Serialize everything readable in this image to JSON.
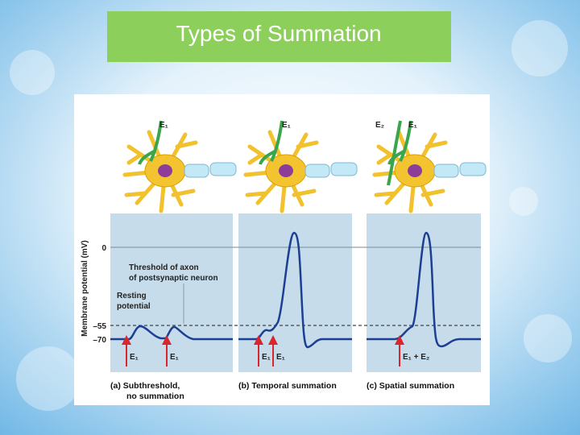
{
  "title": "Types of Summation",
  "figure": {
    "neurons": [
      {
        "labels": [
          "E₁"
        ]
      },
      {
        "labels": [
          "E₁"
        ]
      },
      {
        "labels": [
          "E₂",
          "E₁"
        ]
      }
    ],
    "y_axis_label": "Membrane potential (mV)",
    "y_ticks": [
      "0",
      "–55",
      "–70"
    ],
    "annotations": {
      "threshold": [
        "Threshold of axon",
        "of postsynaptic neuron"
      ],
      "resting": [
        "Resting",
        "potential"
      ]
    },
    "panels": [
      {
        "stimuli": [
          "E₁",
          "E₁"
        ],
        "caption": [
          "(a) Subthreshold,",
          "no summation"
        ]
      },
      {
        "stimuli": [
          "E₁",
          "E₁"
        ],
        "caption": [
          "(b) Temporal summation"
        ]
      },
      {
        "stimuli": [
          "E₁ + E₂"
        ],
        "caption": [
          "(c) Spatial summation"
        ]
      }
    ]
  }
}
